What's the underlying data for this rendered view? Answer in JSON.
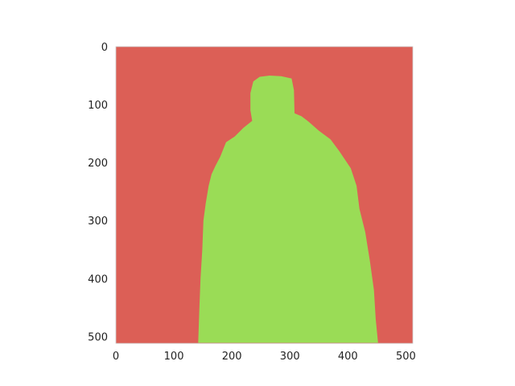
{
  "chart_data": {
    "type": "heatmap",
    "title": "",
    "xlabel": "",
    "ylabel": "",
    "xlim": [
      0,
      512
    ],
    "ylim": [
      512,
      0
    ],
    "grid": false,
    "colors": {
      "background_region": "#dc5f56",
      "foreground_region": "#9adc56"
    },
    "x_ticks": [
      {
        "value": 0,
        "label": "0"
      },
      {
        "value": 100,
        "label": "100"
      },
      {
        "value": 200,
        "label": "200"
      },
      {
        "value": 300,
        "label": "300"
      },
      {
        "value": 400,
        "label": "400"
      },
      {
        "value": 500,
        "label": "500"
      }
    ],
    "y_ticks": [
      {
        "value": 0,
        "label": "0"
      },
      {
        "value": 100,
        "label": "100"
      },
      {
        "value": 200,
        "label": "200"
      },
      {
        "value": 300,
        "label": "300"
      },
      {
        "value": 400,
        "label": "400"
      },
      {
        "value": 500,
        "label": "500"
      }
    ],
    "regions": [
      {
        "class": "background",
        "color": "#dc5f56",
        "extent": [
          0,
          512,
          0,
          512
        ]
      },
      {
        "class": "foreground",
        "color": "#9adc56",
        "outline": [
          [
            142,
            511
          ],
          [
            144,
            450
          ],
          [
            146,
            400
          ],
          [
            149,
            350
          ],
          [
            151,
            300
          ],
          [
            155,
            270
          ],
          [
            160,
            240
          ],
          [
            165,
            220
          ],
          [
            172,
            205
          ],
          [
            180,
            190
          ],
          [
            190,
            165
          ],
          [
            205,
            155
          ],
          [
            220,
            140
          ],
          [
            235,
            128
          ],
          [
            232,
            110
          ],
          [
            232,
            80
          ],
          [
            237,
            60
          ],
          [
            248,
            52
          ],
          [
            265,
            50
          ],
          [
            285,
            51
          ],
          [
            303,
            55
          ],
          [
            307,
            75
          ],
          [
            308,
            115
          ],
          [
            320,
            120
          ],
          [
            333,
            130
          ],
          [
            350,
            145
          ],
          [
            370,
            160
          ],
          [
            385,
            180
          ],
          [
            395,
            195
          ],
          [
            405,
            210
          ],
          [
            415,
            240
          ],
          [
            420,
            280
          ],
          [
            430,
            320
          ],
          [
            438,
            370
          ],
          [
            445,
            420
          ],
          [
            448,
            470
          ],
          [
            452,
            511
          ]
        ]
      }
    ]
  }
}
